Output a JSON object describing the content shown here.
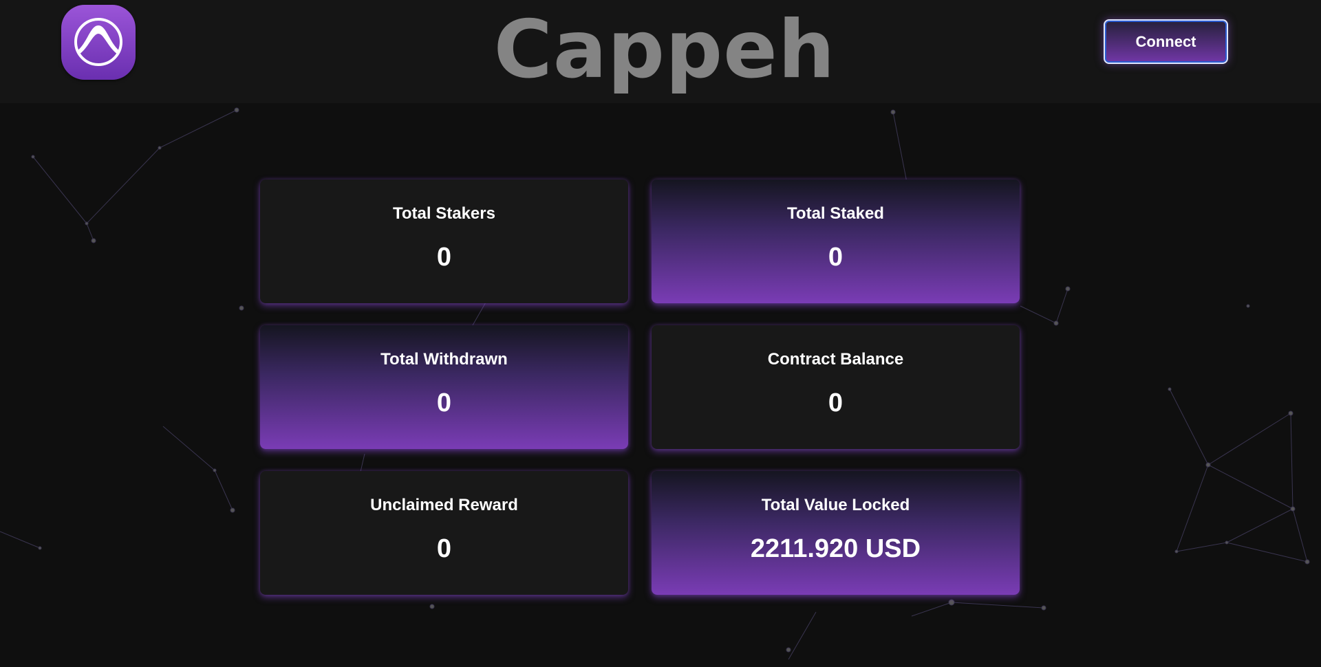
{
  "header": {
    "logo_icon": "arch-circle-logo-icon",
    "connect_label": "Connect"
  },
  "stats": [
    {
      "label": "Total Stakers",
      "value": "0",
      "style": "dark"
    },
    {
      "label": "Total Staked",
      "value": "0",
      "style": "purple"
    },
    {
      "label": "Total Withdrawn",
      "value": "0",
      "style": "purple"
    },
    {
      "label": "Contract Balance",
      "value": "0",
      "style": "dark"
    },
    {
      "label": "Unclaimed Reward",
      "value": "0",
      "style": "dark"
    },
    {
      "label": "Total Value Locked",
      "value": "2211.920 USD",
      "style": "purple"
    }
  ],
  "watermark": "Cappeh",
  "colors": {
    "accent": "#7a3cb5",
    "background": "#0f0f0f",
    "header": "#151515",
    "card": "#181818"
  }
}
